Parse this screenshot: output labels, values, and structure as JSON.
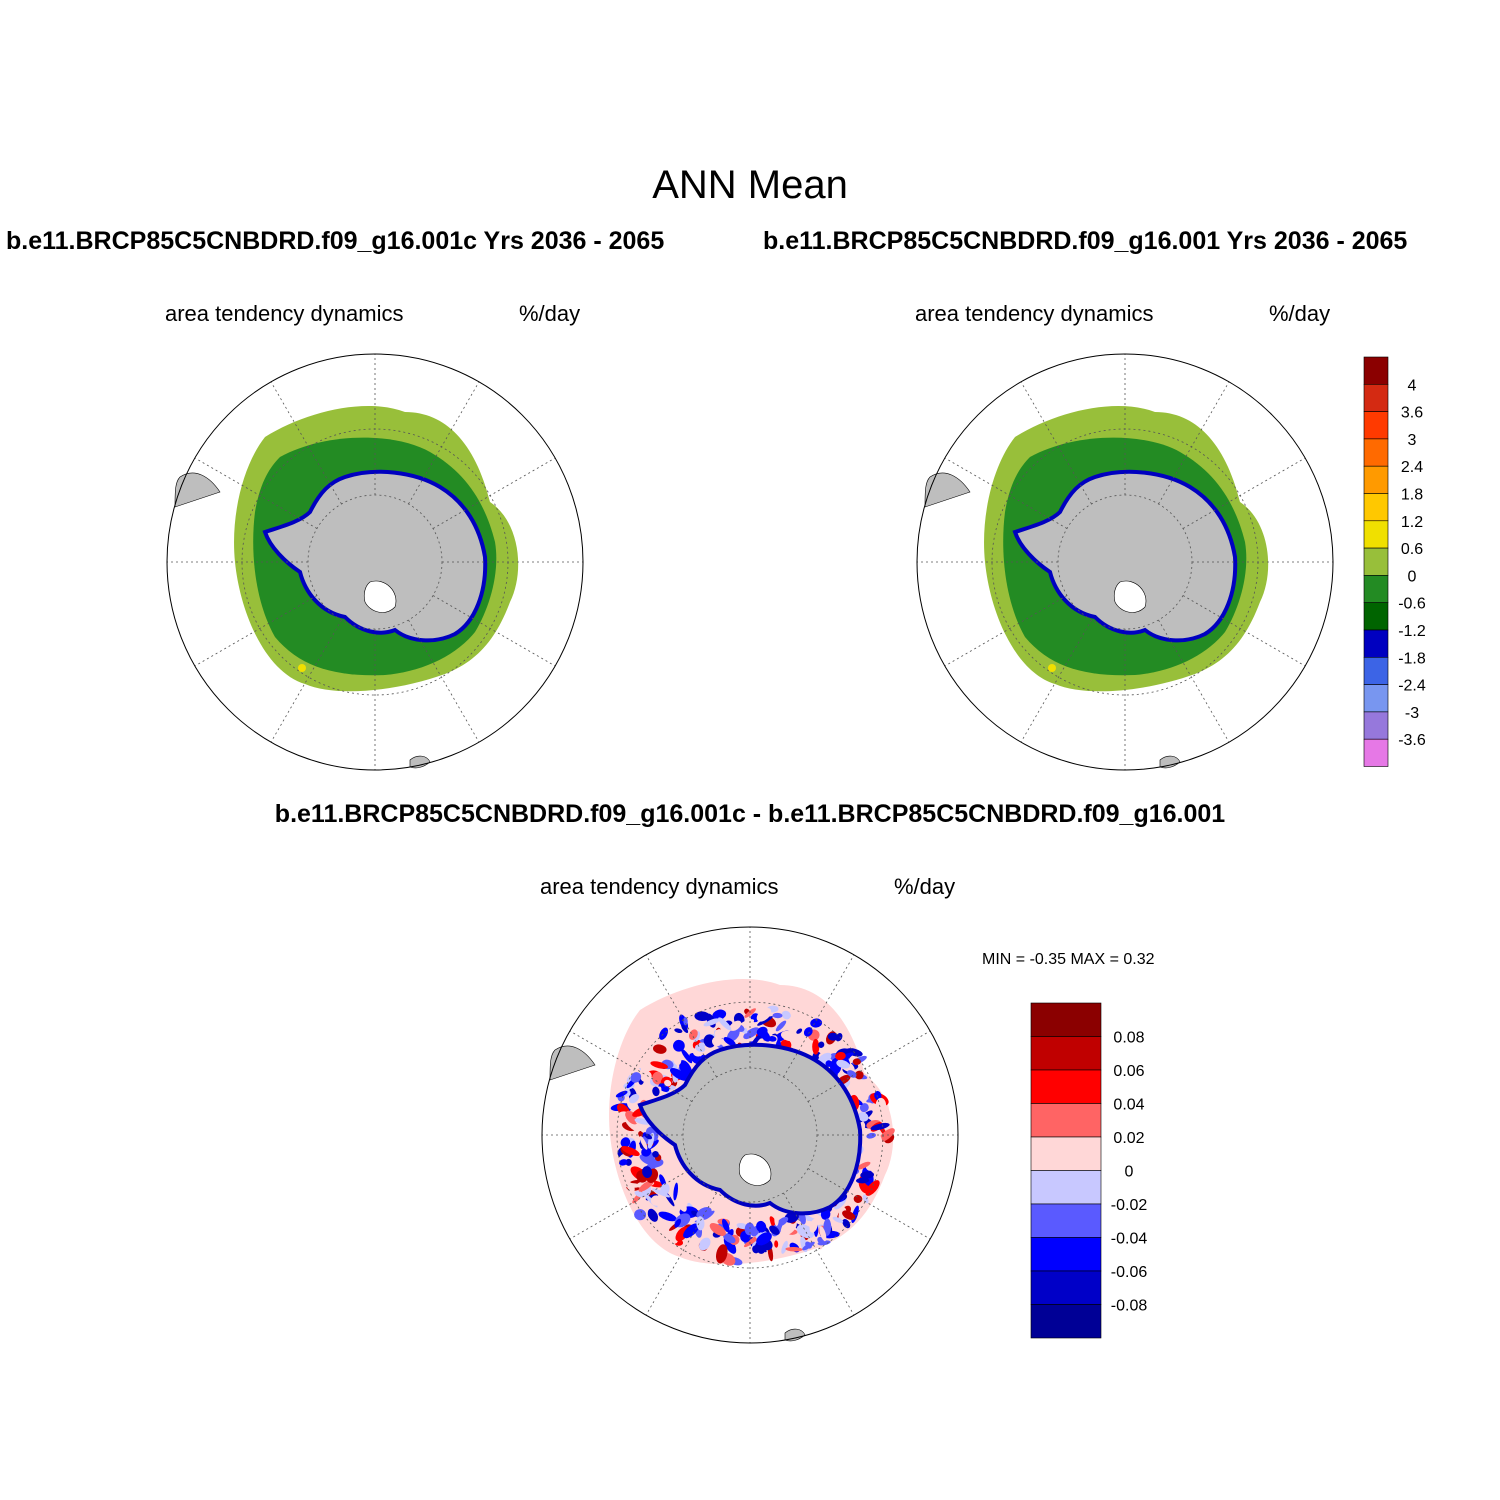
{
  "figure": {
    "title": "ANN Mean",
    "panel_left": {
      "case_title": "b.e11.BRCP85C5CNBDRD.f09_g16.001c  Yrs 2036 - 2065",
      "left_label": "area tendency dynamics",
      "right_label": "%/day"
    },
    "panel_right": {
      "case_title": "b.e11.BRCP85C5CNBDRD.f09_g16.001  Yrs 2036 - 2065",
      "left_label": "area tendency dynamics",
      "right_label": "%/day"
    },
    "panel_diff": {
      "title": "b.e11.BRCP85C5CNBDRD.f09_g16.001c - b.e11.BRCP85C5CNBDRD.f09_g16.001",
      "left_label": "area tendency dynamics",
      "right_label": "%/day",
      "min_max": "MIN =  -0.35 MAX =   0.32"
    },
    "colorbar_main": {
      "labels": [
        "4",
        "3.6",
        "3",
        "2.4",
        "1.8",
        "1.2",
        "0.6",
        "0",
        "-0.6",
        "-1.2",
        "-1.8",
        "-2.4",
        "-3",
        "-3.6"
      ],
      "colors": [
        "#8b0000",
        "#d42a12",
        "#ff3a00",
        "#ff6a00",
        "#ff9a00",
        "#ffc800",
        "#f0e000",
        "#98bf3a",
        "#238b23",
        "#006400",
        "#0000c0",
        "#3c64e6",
        "#7896f0",
        "#9678dc",
        "#e678e6"
      ]
    },
    "colorbar_diff": {
      "labels": [
        "0.08",
        "0.06",
        "0.04",
        "0.02",
        "0",
        "-0.02",
        "-0.04",
        "-0.06",
        "-0.08"
      ],
      "colors": [
        "#8b0000",
        "#c00000",
        "#ff0000",
        "#ff6464",
        "#ffd7d7",
        "#c8c8ff",
        "#5a5aff",
        "#0000ff",
        "#0000c8",
        "#000096"
      ]
    },
    "map": {
      "land_color": "#bebebe",
      "zone_colors": {
        "outer": "#98bf3a",
        "inner": "#238b23",
        "coast": "#0000c0",
        "spot": "#f0e000"
      }
    }
  }
}
